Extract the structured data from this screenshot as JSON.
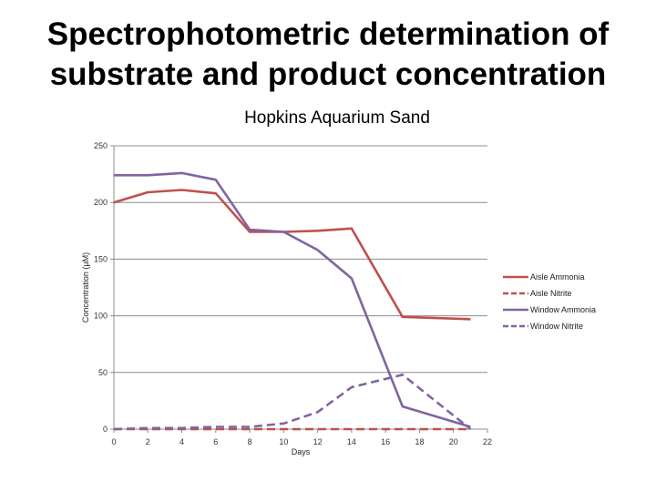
{
  "slide": {
    "title_line1": "Spectrophotometric determination of",
    "title_line2": "substrate and product concentration"
  },
  "chart_data": {
    "type": "line",
    "title": "Hopkins Aquarium Sand",
    "xlabel": "Days",
    "ylabel": "Concentration (µM)",
    "xlim": [
      0,
      22
    ],
    "ylim": [
      0,
      250
    ],
    "x_ticks": [
      0,
      2,
      4,
      6,
      8,
      10,
      12,
      14,
      16,
      18,
      20,
      22
    ],
    "y_ticks": [
      0,
      50,
      100,
      150,
      200,
      250
    ],
    "grid": "horizontal",
    "legend_position": "right",
    "series": [
      {
        "name": "Aisle Ammonia",
        "color": "#c0504d",
        "dash": "solid",
        "x": [
          0,
          2,
          4,
          6,
          8,
          10,
          12,
          14,
          17,
          21
        ],
        "values": [
          200,
          209,
          211,
          208,
          174,
          174,
          175,
          177,
          99,
          97
        ]
      },
      {
        "name": "Aisle Nitrite",
        "color": "#c0504d",
        "dash": "dashed",
        "x": [
          0,
          2,
          4,
          6,
          8,
          10,
          12,
          14,
          17,
          21
        ],
        "values": [
          0,
          0,
          0,
          0,
          0,
          0,
          0,
          0,
          0,
          0
        ]
      },
      {
        "name": "Window Ammonia",
        "color": "#8064a2",
        "dash": "solid",
        "x": [
          0,
          2,
          4,
          6,
          8,
          10,
          12,
          14,
          17,
          21
        ],
        "values": [
          224,
          224,
          226,
          220,
          176,
          174,
          158,
          133,
          20,
          2
        ]
      },
      {
        "name": "Window Nitrite",
        "color": "#8064a2",
        "dash": "dashed",
        "x": [
          0,
          2,
          4,
          6,
          8,
          10,
          12,
          14,
          17,
          21
        ],
        "values": [
          0,
          1,
          1,
          2,
          2,
          5,
          15,
          37,
          48,
          0
        ]
      }
    ]
  }
}
